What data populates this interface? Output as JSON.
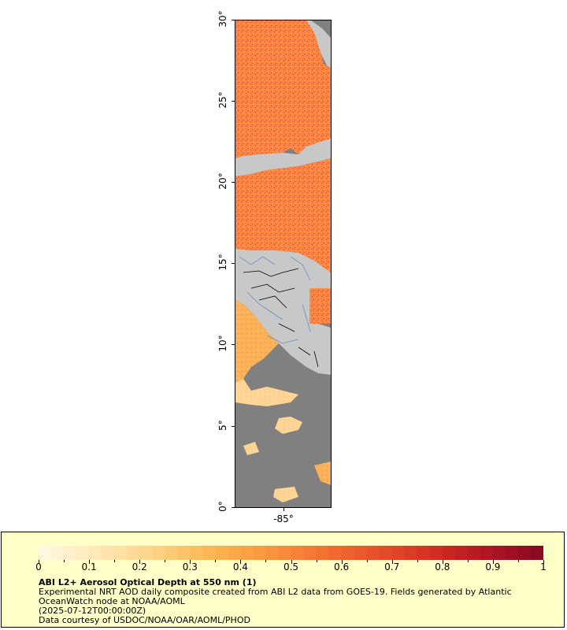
{
  "map": {
    "lat_ticks": [
      "0°",
      "5°",
      "10°",
      "15°",
      "20°",
      "25°",
      "30°"
    ],
    "lon_ticks": [
      "-85°"
    ],
    "colors": {
      "no_data": "#808080",
      "land": "#c8c8c8",
      "border": "#000000",
      "rivers": "#6b8fc4",
      "aod_low": "#ffe4a0",
      "aod_mid": "#f7a444",
      "aod_high": "#e0402a"
    }
  },
  "legend": {
    "colorbar_ticks": [
      "0",
      "0.1",
      "0.2",
      "0.3",
      "0.4",
      "0.5",
      "0.6",
      "0.7",
      "0.8",
      "0.9",
      "1"
    ],
    "colorbar_colors": [
      "#fff7e0",
      "#ffe9b8",
      "#fdd88e",
      "#fcc060",
      "#fba545",
      "#f7873a",
      "#f0662e",
      "#e44828",
      "#d22a22",
      "#b01424",
      "#8a0a22"
    ],
    "title": "ABI L2+ Aerosol Optical Depth at 550 nm (1)",
    "description_line1": "Experimental NRT AOD daily composite created from ABI L2 data from GOES-19. Fields generated by Atlantic",
    "description_line2": "OceanWatch node at NOAA/AOML",
    "date": "(2025-07-12T00:00:00Z)",
    "credit": "Data courtesy of USDOC/NOAA/OAR/AOML/PHOD",
    "background": "#ffffc8"
  }
}
